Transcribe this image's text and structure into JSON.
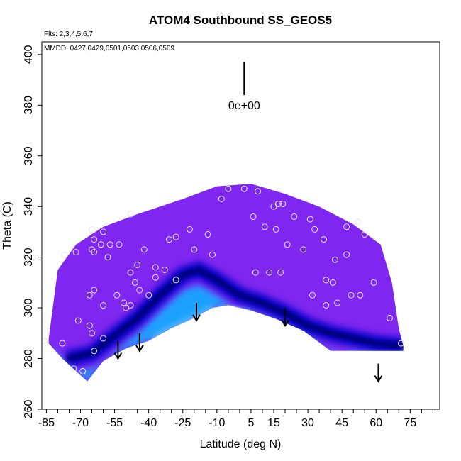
{
  "chart_data": {
    "type": "scatter",
    "title": "ATOM4 Southbound SS_GEOS5",
    "flights_note": "Flts: 2,3,4,5,6,7",
    "dates_note": "MMDD: 0427,0429,0501,0503,0506,0509",
    "xlabel": "Latitude (deg N)",
    "ylabel": "Theta (C)",
    "xlim": [
      -87,
      88
    ],
    "ylim": [
      260,
      405
    ],
    "x_ticks": [
      -85,
      -70,
      -55,
      -40,
      -25,
      -10,
      5,
      15,
      30,
      45,
      60,
      75
    ],
    "y_ticks": [
      260,
      280,
      300,
      320,
      340,
      360,
      380,
      400
    ],
    "scale_label": "0e+00",
    "scale_bar": {
      "x": 2,
      "y_top": 397,
      "y_bottom": 384
    },
    "field_colors": {
      "background_field": "#7f26f0",
      "tropopause_band": "#0000c8",
      "lower_band": "#1aa0ff",
      "lower_light": "#b8ecff",
      "circle_color": "#e6e6e6"
    },
    "field_outline": {
      "top": [
        [
          -84,
          288
        ],
        [
          -80,
          315
        ],
        [
          -72,
          325
        ],
        [
          -60,
          332
        ],
        [
          -45,
          337
        ],
        [
          -25,
          343
        ],
        [
          -10,
          348
        ],
        [
          5,
          349
        ],
        [
          20,
          345
        ],
        [
          35,
          340
        ],
        [
          50,
          333
        ],
        [
          62,
          325
        ],
        [
          67,
          310
        ],
        [
          70,
          292
        ],
        [
          72,
          285
        ]
      ],
      "bottom": [
        [
          72,
          283
        ],
        [
          40,
          283
        ],
        [
          28,
          291
        ],
        [
          15,
          296
        ],
        [
          5,
          299
        ],
        [
          -5,
          301
        ],
        [
          -12,
          300
        ],
        [
          -20,
          296
        ],
        [
          -30,
          292
        ],
        [
          -40,
          287
        ],
        [
          -50,
          284
        ],
        [
          -60,
          279
        ],
        [
          -67,
          271
        ],
        [
          -72,
          275
        ],
        [
          -78,
          280
        ],
        [
          -84,
          286
        ]
      ]
    },
    "tropopause_ridge": [
      [
        -76,
        280
      ],
      [
        -65,
        282
      ],
      [
        -55,
        289
      ],
      [
        -45,
        296
      ],
      [
        -35,
        305
      ],
      [
        -25,
        313
      ],
      [
        -18,
        315
      ],
      [
        -10,
        311
      ],
      [
        0,
        305
      ],
      [
        10,
        302
      ],
      [
        20,
        298
      ],
      [
        30,
        293
      ],
      [
        40,
        290
      ],
      [
        50,
        288
      ],
      [
        60,
        286
      ],
      [
        72,
        285
      ]
    ],
    "aircraft_points": [
      {
        "x": -65,
        "y": 331
      },
      {
        "x": -64,
        "y": 327
      },
      {
        "x": -60,
        "y": 330
      },
      {
        "x": -61,
        "y": 325
      },
      {
        "x": -57,
        "y": 325
      },
      {
        "x": -65,
        "y": 323
      },
      {
        "x": -64,
        "y": 322
      },
      {
        "x": -58,
        "y": 320
      },
      {
        "x": -53,
        "y": 325
      },
      {
        "x": -48,
        "y": 337
      },
      {
        "x": -42,
        "y": 323
      },
      {
        "x": -37,
        "y": 316
      },
      {
        "x": -31,
        "y": 327
      },
      {
        "x": -28,
        "y": 328
      },
      {
        "x": -22,
        "y": 331
      },
      {
        "x": -20,
        "y": 323
      },
      {
        "x": -14,
        "y": 329
      },
      {
        "x": -12,
        "y": 321
      },
      {
        "x": -77,
        "y": 321
      },
      {
        "x": -72,
        "y": 322
      },
      {
        "x": -48,
        "y": 314
      },
      {
        "x": -45,
        "y": 317
      },
      {
        "x": -46,
        "y": 310
      },
      {
        "x": -44,
        "y": 307
      },
      {
        "x": -40,
        "y": 305
      },
      {
        "x": -33,
        "y": 315
      },
      {
        "x": -28,
        "y": 311
      },
      {
        "x": -37,
        "y": 312
      },
      {
        "x": -54,
        "y": 305
      },
      {
        "x": -66,
        "y": 305
      },
      {
        "x": -64,
        "y": 307
      },
      {
        "x": -60,
        "y": 301
      },
      {
        "x": -51,
        "y": 302
      },
      {
        "x": -48,
        "y": 301
      },
      {
        "x": -71,
        "y": 295
      },
      {
        "x": -66,
        "y": 293
      },
      {
        "x": -65,
        "y": 290
      },
      {
        "x": -60,
        "y": 288
      },
      {
        "x": -64,
        "y": 283
      },
      {
        "x": -78,
        "y": 286
      },
      {
        "x": -69,
        "y": 275
      },
      {
        "x": -73,
        "y": 276
      },
      {
        "x": -50,
        "y": 300
      },
      {
        "x": -86,
        "y": 287
      },
      {
        "x": -8,
        "y": 343
      },
      {
        "x": -5,
        "y": 347
      },
      {
        "x": 2,
        "y": 347
      },
      {
        "x": 8,
        "y": 346
      },
      {
        "x": 6,
        "y": 336
      },
      {
        "x": 11,
        "y": 332
      },
      {
        "x": 15,
        "y": 340
      },
      {
        "x": 17,
        "y": 341
      },
      {
        "x": 19,
        "y": 341
      },
      {
        "x": 24,
        "y": 336
      },
      {
        "x": 31,
        "y": 335
      },
      {
        "x": 33,
        "y": 331
      },
      {
        "x": 16,
        "y": 331
      },
      {
        "x": 21,
        "y": 325
      },
      {
        "x": 28,
        "y": 323
      },
      {
        "x": 37,
        "y": 327
      },
      {
        "x": 47,
        "y": 332
      },
      {
        "x": 52,
        "y": 334
      },
      {
        "x": 55,
        "y": 329
      },
      {
        "x": 47,
        "y": 321
      },
      {
        "x": 42,
        "y": 319
      },
      {
        "x": 7,
        "y": 314
      },
      {
        "x": 13,
        "y": 314
      },
      {
        "x": 18,
        "y": 314
      },
      {
        "x": 32,
        "y": 305
      },
      {
        "x": 38,
        "y": 311
      },
      {
        "x": 41,
        "y": 310
      },
      {
        "x": 43,
        "y": 302
      },
      {
        "x": 49,
        "y": 305
      },
      {
        "x": 53,
        "y": 305
      },
      {
        "x": 59,
        "y": 310
      },
      {
        "x": 66,
        "y": 296
      },
      {
        "x": 38,
        "y": 301
      },
      {
        "x": 71,
        "y": 286
      }
    ],
    "arrows": [
      {
        "x": -53.5,
        "y_start": 287,
        "y_end": 280
      },
      {
        "x": -44,
        "y_start": 290,
        "y_end": 283
      },
      {
        "x": -19,
        "y_start": 302,
        "y_end": 295
      },
      {
        "x": 20,
        "y_start": 300,
        "y_end": 293
      },
      {
        "x": 61,
        "y_start": 278,
        "y_end": 271
      }
    ]
  }
}
